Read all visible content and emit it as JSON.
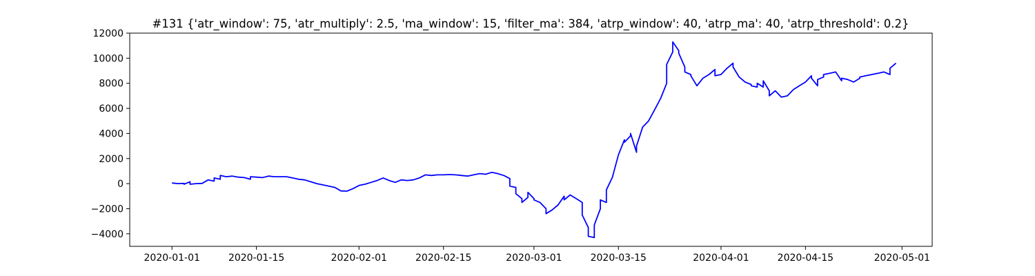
{
  "chart_data": {
    "type": "line",
    "title": "#131 {'atr_window': 75, 'atr_multiply': 2.5, 'ma_window': 15, 'filter_ma': 384, 'atrp_window': 40, 'atrp_ma': 40, 'atrp_threshold': 0.2}",
    "xlabel": "",
    "ylabel": "",
    "grid": false,
    "legend": "none",
    "xlim": [
      "2019-12-25",
      "2020-05-06"
    ],
    "ylim": [
      -5000,
      12000
    ],
    "x_ticks": [
      "2020-01-01",
      "2020-01-15",
      "2020-02-01",
      "2020-02-15",
      "2020-03-01",
      "2020-03-15",
      "2020-04-01",
      "2020-04-15",
      "2020-05-01"
    ],
    "x_tick_labels": [
      "2020-01-01",
      "2020-01-15",
      "2020-02-01",
      "2020-02-15",
      "2020-03-01",
      "2020-03-15",
      "2020-04-01",
      "2020-04-15",
      "2020-05-01"
    ],
    "y_ticks": [
      -4000,
      -2000,
      0,
      2000,
      4000,
      6000,
      8000,
      10000,
      12000
    ],
    "y_tick_labels": [
      "−4000",
      "−2000",
      "0",
      "2000",
      "4000",
      "6000",
      "8000",
      "10000",
      "12000"
    ],
    "colors": {
      "line": "#0000ff",
      "axes": "#000000",
      "background": "#ffffff"
    },
    "series": [
      {
        "x": [
          "2020-01-01",
          "2020-01-02",
          "2020-01-03",
          "2020-01-03",
          "2020-01-04",
          "2020-01-04",
          "2020-01-05",
          "2020-01-06",
          "2020-01-07",
          "2020-01-08",
          "2020-01-08",
          "2020-01-09",
          "2020-01-09",
          "2020-01-10",
          "2020-01-11",
          "2020-01-12",
          "2020-01-13",
          "2020-01-14",
          "2020-01-14",
          "2020-01-15",
          "2020-01-16",
          "2020-01-17",
          "2020-01-18",
          "2020-01-19",
          "2020-01-20",
          "2020-01-21",
          "2020-01-22",
          "2020-01-23",
          "2020-01-24",
          "2020-01-25",
          "2020-01-27",
          "2020-01-28",
          "2020-01-29",
          "2020-01-30",
          "2020-01-31",
          "2020-02-01",
          "2020-02-02",
          "2020-02-03",
          "2020-02-04",
          "2020-02-05",
          "2020-02-06",
          "2020-02-07",
          "2020-02-08",
          "2020-02-09",
          "2020-02-10",
          "2020-02-11",
          "2020-02-12",
          "2020-02-13",
          "2020-02-14",
          "2020-02-15",
          "2020-02-16",
          "2020-02-17",
          "2020-02-18",
          "2020-02-19",
          "2020-02-20",
          "2020-02-21",
          "2020-02-22",
          "2020-02-23",
          "2020-02-24",
          "2020-02-25",
          "2020-02-26",
          "2020-02-26",
          "2020-02-27",
          "2020-02-27",
          "2020-02-28",
          "2020-02-28",
          "2020-02-29",
          "2020-02-29",
          "2020-03-01",
          "2020-03-01",
          "2020-03-02",
          "2020-03-03",
          "2020-03-03",
          "2020-03-04",
          "2020-03-05",
          "2020-03-06",
          "2020-03-06",
          "2020-03-07",
          "2020-03-08",
          "2020-03-09",
          "2020-03-09",
          "2020-03-10",
          "2020-03-10",
          "2020-03-11",
          "2020-03-11",
          "2020-03-12",
          "2020-03-12",
          "2020-03-13",
          "2020-03-13",
          "2020-03-14",
          "2020-03-15",
          "2020-03-16",
          "2020-03-16",
          "2020-03-17",
          "2020-03-17",
          "2020-03-18",
          "2020-03-18",
          "2020-03-19",
          "2020-03-20",
          "2020-03-21",
          "2020-03-22",
          "2020-03-23",
          "2020-03-23",
          "2020-03-24",
          "2020-03-24",
          "2020-03-25",
          "2020-03-25",
          "2020-03-26",
          "2020-03-26",
          "2020-03-27",
          "2020-03-27",
          "2020-03-28",
          "2020-03-29",
          "2020-03-30",
          "2020-03-31",
          "2020-03-31",
          "2020-04-01",
          "2020-04-02",
          "2020-04-03",
          "2020-04-03",
          "2020-04-04",
          "2020-04-05",
          "2020-04-06",
          "2020-04-06",
          "2020-04-07",
          "2020-04-07",
          "2020-04-08",
          "2020-04-08",
          "2020-04-09",
          "2020-04-09",
          "2020-04-10",
          "2020-04-11",
          "2020-04-12",
          "2020-04-13",
          "2020-04-14",
          "2020-04-15",
          "2020-04-16",
          "2020-04-16",
          "2020-04-17",
          "2020-04-17",
          "2020-04-18",
          "2020-04-18",
          "2020-04-19",
          "2020-04-20",
          "2020-04-21",
          "2020-04-21",
          "2020-04-22",
          "2020-04-23",
          "2020-04-24",
          "2020-04-24",
          "2020-04-25",
          "2020-04-26",
          "2020-04-27",
          "2020-04-28",
          "2020-04-29",
          "2020-04-29",
          "2020-04-30"
        ],
        "y": [
          50,
          0,
          20,
          -50,
          150,
          -50,
          0,
          20,
          300,
          200,
          450,
          350,
          650,
          550,
          600,
          520,
          480,
          350,
          550,
          520,
          480,
          600,
          550,
          550,
          550,
          450,
          350,
          300,
          150,
          0,
          -200,
          -300,
          -580,
          -600,
          -400,
          -150,
          -50,
          100,
          250,
          450,
          250,
          100,
          300,
          250,
          300,
          450,
          700,
          650,
          700,
          700,
          720,
          700,
          650,
          600,
          700,
          800,
          750,
          900,
          800,
          650,
          400,
          -200,
          -300,
          -800,
          -1200,
          -1500,
          -1100,
          -700,
          -1200,
          -1300,
          -1500,
          -2000,
          -2400,
          -2100,
          -1700,
          -1000,
          -1300,
          -900,
          -1200,
          -1500,
          -2500,
          -3500,
          -4200,
          -4300,
          -3300,
          -2000,
          -1300,
          -1500,
          -500,
          500,
          2300,
          3500,
          3300,
          3800,
          4000,
          2500,
          3000,
          4500,
          5000,
          5900,
          6800,
          8000,
          9500,
          10500,
          11300,
          10600,
          10400,
          9300,
          8900,
          8700,
          8600,
          7800,
          8400,
          8700,
          9100,
          8600,
          8700,
          9200,
          9600,
          9300,
          8500,
          8100,
          7900,
          7800,
          7700,
          8000,
          7700,
          8200,
          7400,
          7000,
          7400,
          6900,
          7000,
          7500,
          7800,
          8100,
          8600,
          8400,
          7800,
          8300,
          8500,
          8700,
          8800,
          8900,
          8200,
          8400,
          8300,
          8100,
          8400,
          8500,
          8600,
          8700,
          8800,
          8900,
          8700,
          9200,
          9600
        ]
      }
    ]
  }
}
